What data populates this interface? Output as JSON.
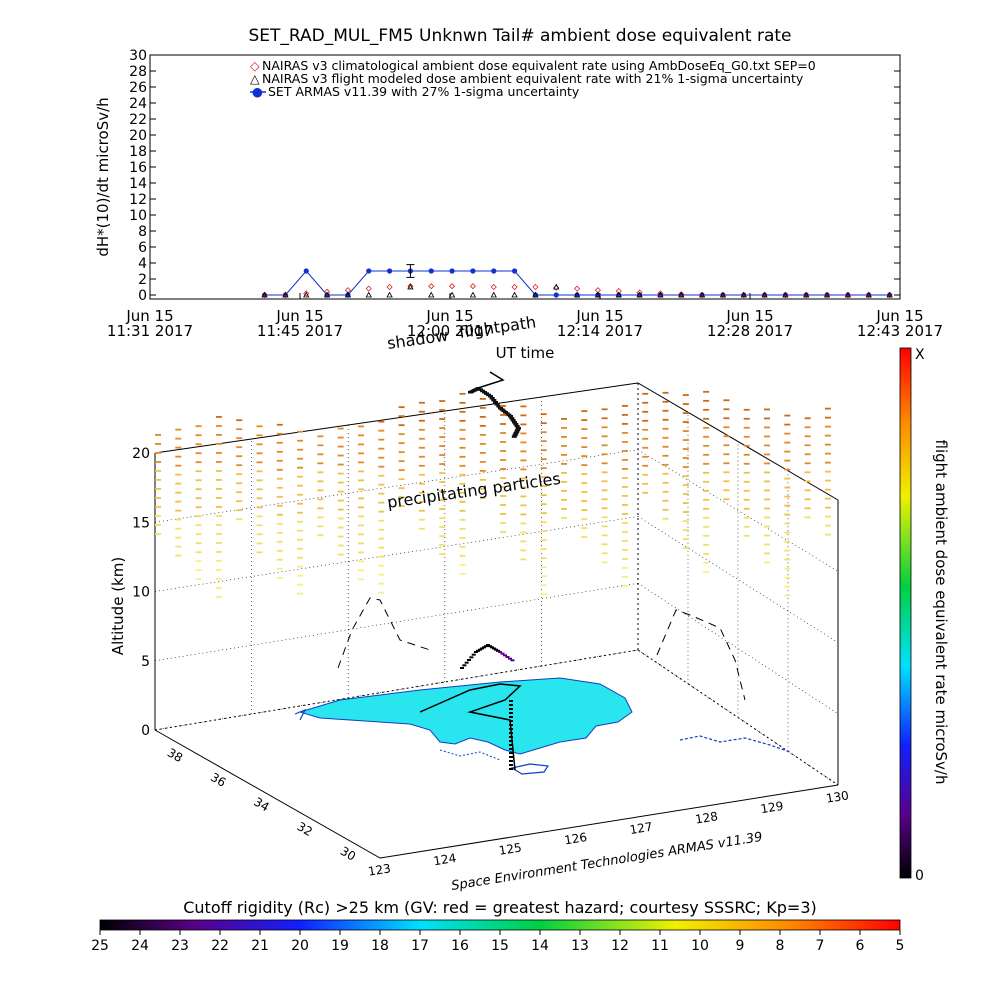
{
  "top_chart": {
    "title": "SET_RAD_MUL_FM5 Unknwn Tail#  ambient dose equivalent rate",
    "ylabel": "dH*(10)/dt microSv/h",
    "xlabel": "UT time",
    "legend": [
      {
        "symbol": "◇",
        "label": "NAIRAS v3 climatological ambient dose equivalent rate using AmbDoseEq_G0.txt SEP=0",
        "color": "#e02020"
      },
      {
        "symbol": "△",
        "label": "NAIRAS v3 flight modeled dose ambient equivalent rate with 21% 1-sigma uncertainty",
        "color": "#000000"
      },
      {
        "symbol": "●",
        "label": "SET ARMAS v11.39 with 27% 1-sigma uncertainty",
        "color": "#1030d0"
      }
    ],
    "xticks": [
      {
        "line1": "Jun 15",
        "line2": "11:31 2017"
      },
      {
        "line1": "Jun 15",
        "line2": "11:45 2017"
      },
      {
        "line1": "Jun 15",
        "line2": "12:00 2017"
      },
      {
        "line1": "Jun 15",
        "line2": "12:14 2017"
      },
      {
        "line1": "Jun 15",
        "line2": "12:28 2017"
      },
      {
        "line1": "Jun 15",
        "line2": "12:43 2017"
      }
    ],
    "yticks": [
      "0",
      "2",
      "4",
      "6",
      "8",
      "10",
      "12",
      "14",
      "16",
      "18",
      "20",
      "22",
      "24",
      "26",
      "28",
      "30"
    ]
  },
  "chart_data": [
    {
      "type": "line",
      "title": "SET_RAD_MUL_FM5 Unknwn Tail#  ambient dose equivalent rate",
      "xlabel": "UT time",
      "ylabel": "dH*(10)/dt microSv/h",
      "x_unit": "minutes after 11:31 UT, Jun 15 2017",
      "xlim": [
        0,
        72
      ],
      "ylim": [
        -0.5,
        30
      ],
      "series": [
        {
          "name": "SET ARMAS v11.39 with 27% 1-sigma uncertainty",
          "color": "#1030d0",
          "x": [
            11,
            13,
            15,
            17,
            19,
            21,
            23,
            25,
            27,
            29,
            31,
            33,
            35,
            37,
            39,
            41,
            43,
            45,
            47,
            49,
            51,
            53,
            55,
            57,
            59,
            61,
            63,
            65,
            67,
            69,
            71
          ],
          "y": [
            0,
            0,
            3,
            0,
            0,
            3,
            3,
            3,
            3,
            3,
            3,
            3,
            3,
            0,
            0,
            0,
            0,
            0,
            0,
            0,
            0,
            0,
            0,
            0,
            0,
            0,
            0,
            0,
            0,
            0,
            0
          ]
        },
        {
          "name": "NAIRAS v3 climatological ambient dose equivalent rate using AmbDoseEq_G0.txt SEP=0",
          "color": "#e02020",
          "x": [
            11,
            13,
            15,
            17,
            19,
            21,
            23,
            25,
            27,
            29,
            31,
            33,
            35,
            37,
            39,
            41,
            43,
            45,
            47,
            49,
            51,
            53,
            55,
            57,
            59,
            61,
            63,
            65,
            67,
            69,
            71
          ],
          "y": [
            0,
            0,
            0.2,
            0.4,
            0.6,
            0.8,
            1.0,
            1.1,
            1.1,
            1.1,
            1.1,
            1.0,
            1.0,
            1.0,
            0.9,
            0.8,
            0.6,
            0.5,
            0.3,
            0.2,
            0.1,
            0,
            0,
            0,
            0,
            0,
            0,
            0,
            0,
            0,
            0
          ]
        },
        {
          "name": "NAIRAS v3 flight modeled dose ambient equivalent rate with 21% 1-sigma uncertainty",
          "color": "#000000",
          "x": [
            11,
            13,
            15,
            17,
            19,
            21,
            23,
            25,
            27,
            29,
            31,
            33,
            35,
            37,
            39,
            41,
            43,
            45,
            47,
            49,
            51,
            53,
            55,
            57,
            59,
            61,
            63,
            65,
            67,
            69,
            71
          ],
          "y": [
            0,
            0,
            0,
            0,
            0,
            0,
            0,
            1.0,
            0,
            0,
            0,
            0,
            0,
            0,
            1.0,
            0,
            0,
            0,
            0,
            0,
            0,
            0,
            0,
            0,
            0,
            0,
            0,
            0,
            0,
            0,
            0
          ]
        }
      ]
    },
    {
      "type": "scatter",
      "title": "",
      "annotations": [
        "shadow",
        "flightpath",
        "precipitating particles"
      ],
      "zlabel": "Altitude (km)",
      "zticks": [
        "0",
        "5",
        "10",
        "15",
        "20"
      ],
      "lat_ticks": [
        "30",
        "32",
        "34",
        "36",
        "38"
      ],
      "lon_ticks": [
        "123",
        "124",
        "125",
        "126",
        "127",
        "128",
        "129",
        "130"
      ],
      "credit": "Space Environment Technologies ARMAS v11.39",
      "colorbar_right": {
        "label": "flight ambient dose equivalent rate microSv/h",
        "top": "X",
        "bottom": "0"
      },
      "colorbar_bottom": {
        "label": "Cutoff rigidity (Rc) >25 km (GV: red = greatest hazard; courtesy SSSRC; Kp=3)",
        "ticks": [
          "25",
          "24",
          "23",
          "22",
          "21",
          "20",
          "19",
          "18",
          "17",
          "16",
          "15",
          "14",
          "13",
          "12",
          "11",
          "10",
          "9",
          "8",
          "7",
          "6",
          "5"
        ]
      }
    }
  ]
}
